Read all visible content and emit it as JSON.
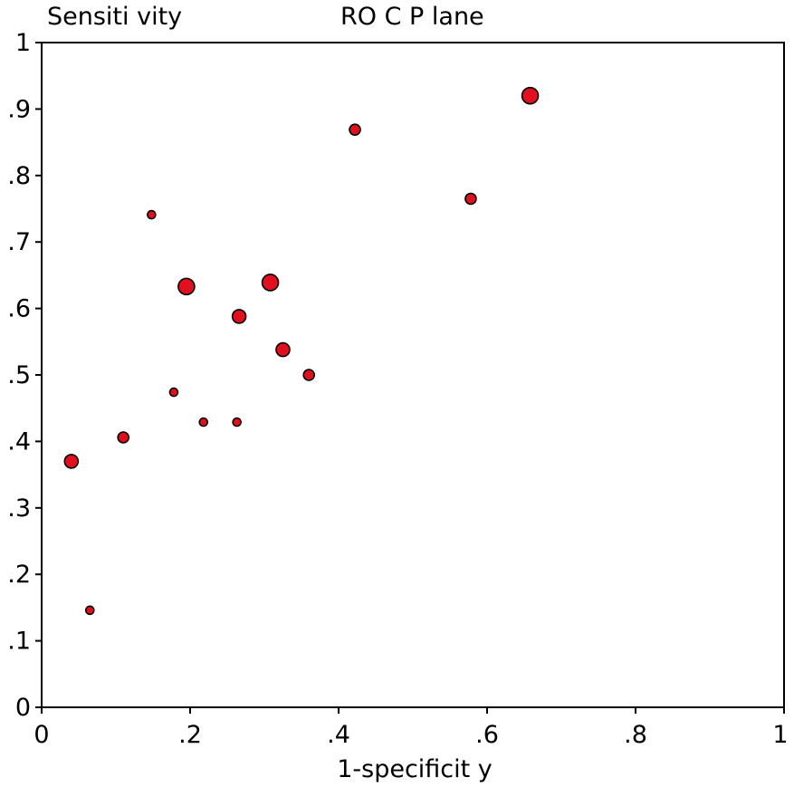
{
  "chart_data": {
    "type": "scatter",
    "title": "RO C P lane",
    "ylabel": "Sensiti vity",
    "xlabel": "1-specificit y",
    "xlim": [
      0,
      1
    ],
    "ylim": [
      0,
      1
    ],
    "grid": false,
    "x_ticks": [
      "0",
      ".2",
      ".4",
      ".6",
      ".8",
      "1"
    ],
    "y_ticks": [
      "0",
      ".1",
      ".2",
      ".3",
      ".4",
      ".5",
      ".6",
      ".7",
      ".8",
      ".9",
      "1"
    ],
    "marker_color": "#e0101e",
    "marker_edge_color": "#000000",
    "points": [
      {
        "x": 0.04,
        "y": 0.37,
        "weight": 3
      },
      {
        "x": 0.065,
        "y": 0.146,
        "weight": 1
      },
      {
        "x": 0.11,
        "y": 0.406,
        "weight": 2
      },
      {
        "x": 0.148,
        "y": 0.741,
        "weight": 1
      },
      {
        "x": 0.178,
        "y": 0.474,
        "weight": 1
      },
      {
        "x": 0.195,
        "y": 0.633,
        "weight": 4
      },
      {
        "x": 0.218,
        "y": 0.429,
        "weight": 1
      },
      {
        "x": 0.263,
        "y": 0.429,
        "weight": 1
      },
      {
        "x": 0.266,
        "y": 0.588,
        "weight": 3
      },
      {
        "x": 0.308,
        "y": 0.639,
        "weight": 4
      },
      {
        "x": 0.325,
        "y": 0.538,
        "weight": 3
      },
      {
        "x": 0.36,
        "y": 0.5,
        "weight": 2
      },
      {
        "x": 0.422,
        "y": 0.869,
        "weight": 2
      },
      {
        "x": 0.578,
        "y": 0.765,
        "weight": 2
      },
      {
        "x": 0.658,
        "y": 0.92,
        "weight": 4
      }
    ]
  }
}
